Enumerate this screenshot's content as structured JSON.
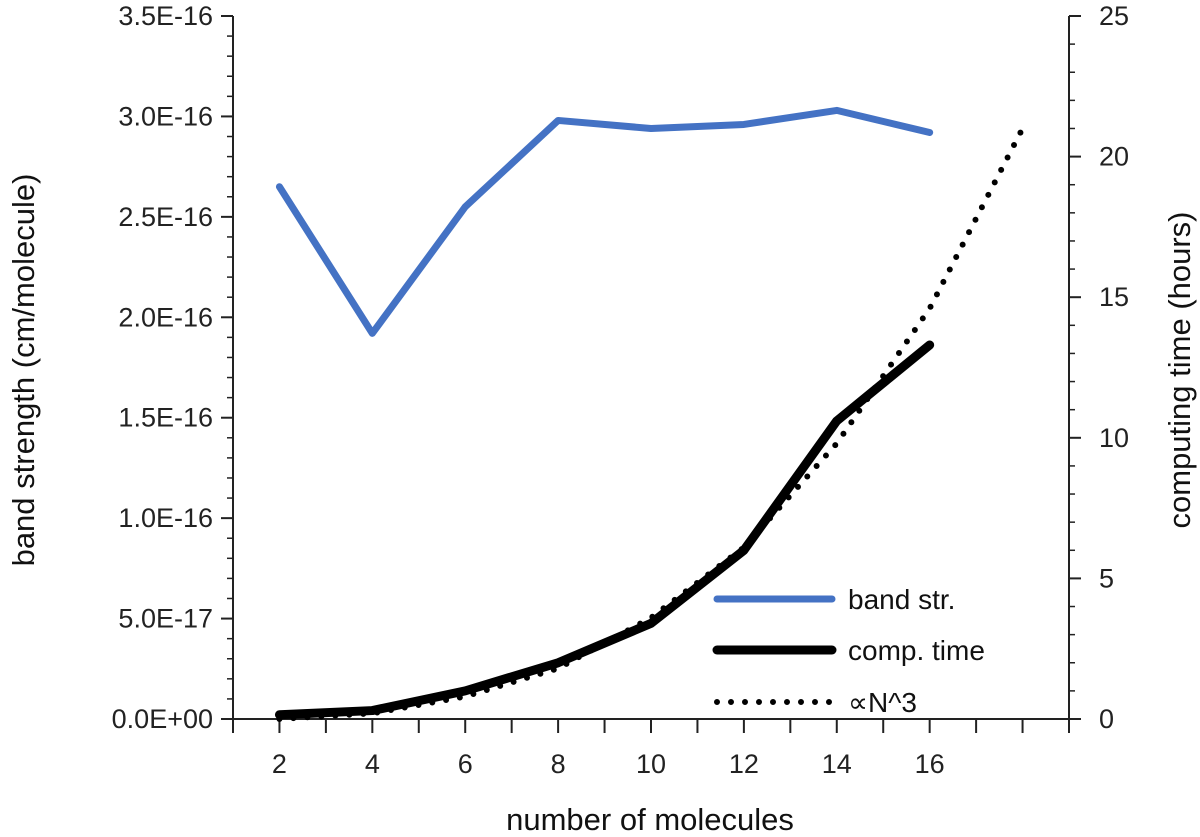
{
  "chart_data": {
    "type": "line",
    "xlabel": "number of molecules",
    "ylabel": "band strength (cm/molecule)",
    "y2label": "computing time (hours)",
    "x_ticks": [
      "2",
      "4",
      "6",
      "8",
      "10",
      "12",
      "14",
      "16"
    ],
    "xlim": [
      1,
      19
    ],
    "ylim": [
      0,
      3.5e-16
    ],
    "y_ticks": [
      0,
      5e-17,
      1e-16,
      1.5e-16,
      2e-16,
      2.5e-16,
      3e-16,
      3.5e-16
    ],
    "y_tick_labels": [
      "0.0E+00",
      "5.0E-17",
      "1.0E-16",
      "1.5E-16",
      "2.0E-16",
      "2.5E-16",
      "3.0E-16",
      "3.5E-16"
    ],
    "y2lim": [
      0,
      25
    ],
    "y2_ticks": [
      0,
      5,
      10,
      15,
      20,
      25
    ],
    "y2_tick_labels": [
      "0",
      "5",
      "10",
      "15",
      "20",
      "25"
    ],
    "series": [
      {
        "name": "band str.",
        "axis": "left",
        "color": "#4472C4",
        "style": "solid",
        "x": [
          2,
          4,
          6,
          8,
          10,
          12,
          14,
          16
        ],
        "values": [
          2.65e-16,
          1.92e-16,
          2.55e-16,
          2.98e-16,
          2.94e-16,
          2.96e-16,
          3.03e-16,
          2.92e-16
        ]
      },
      {
        "name": "comp. time",
        "axis": "right",
        "color": "#000000",
        "style": "solid-thick",
        "x": [
          2,
          4,
          6,
          8,
          10,
          12,
          14,
          16
        ],
        "values": [
          0.15,
          0.3,
          1.0,
          2.0,
          3.4,
          6.0,
          10.6,
          13.3
        ]
      },
      {
        "name": "∝N^3",
        "axis": "right",
        "color": "#000000",
        "style": "dotted",
        "x": [
          2,
          4,
          6,
          8,
          10,
          12,
          14,
          16,
          18
        ],
        "values": [
          0.0,
          0.2,
          0.8,
          1.8,
          3.6,
          6.1,
          9.8,
          14.6,
          21.0
        ]
      }
    ],
    "legend_position": "bottom-right"
  }
}
